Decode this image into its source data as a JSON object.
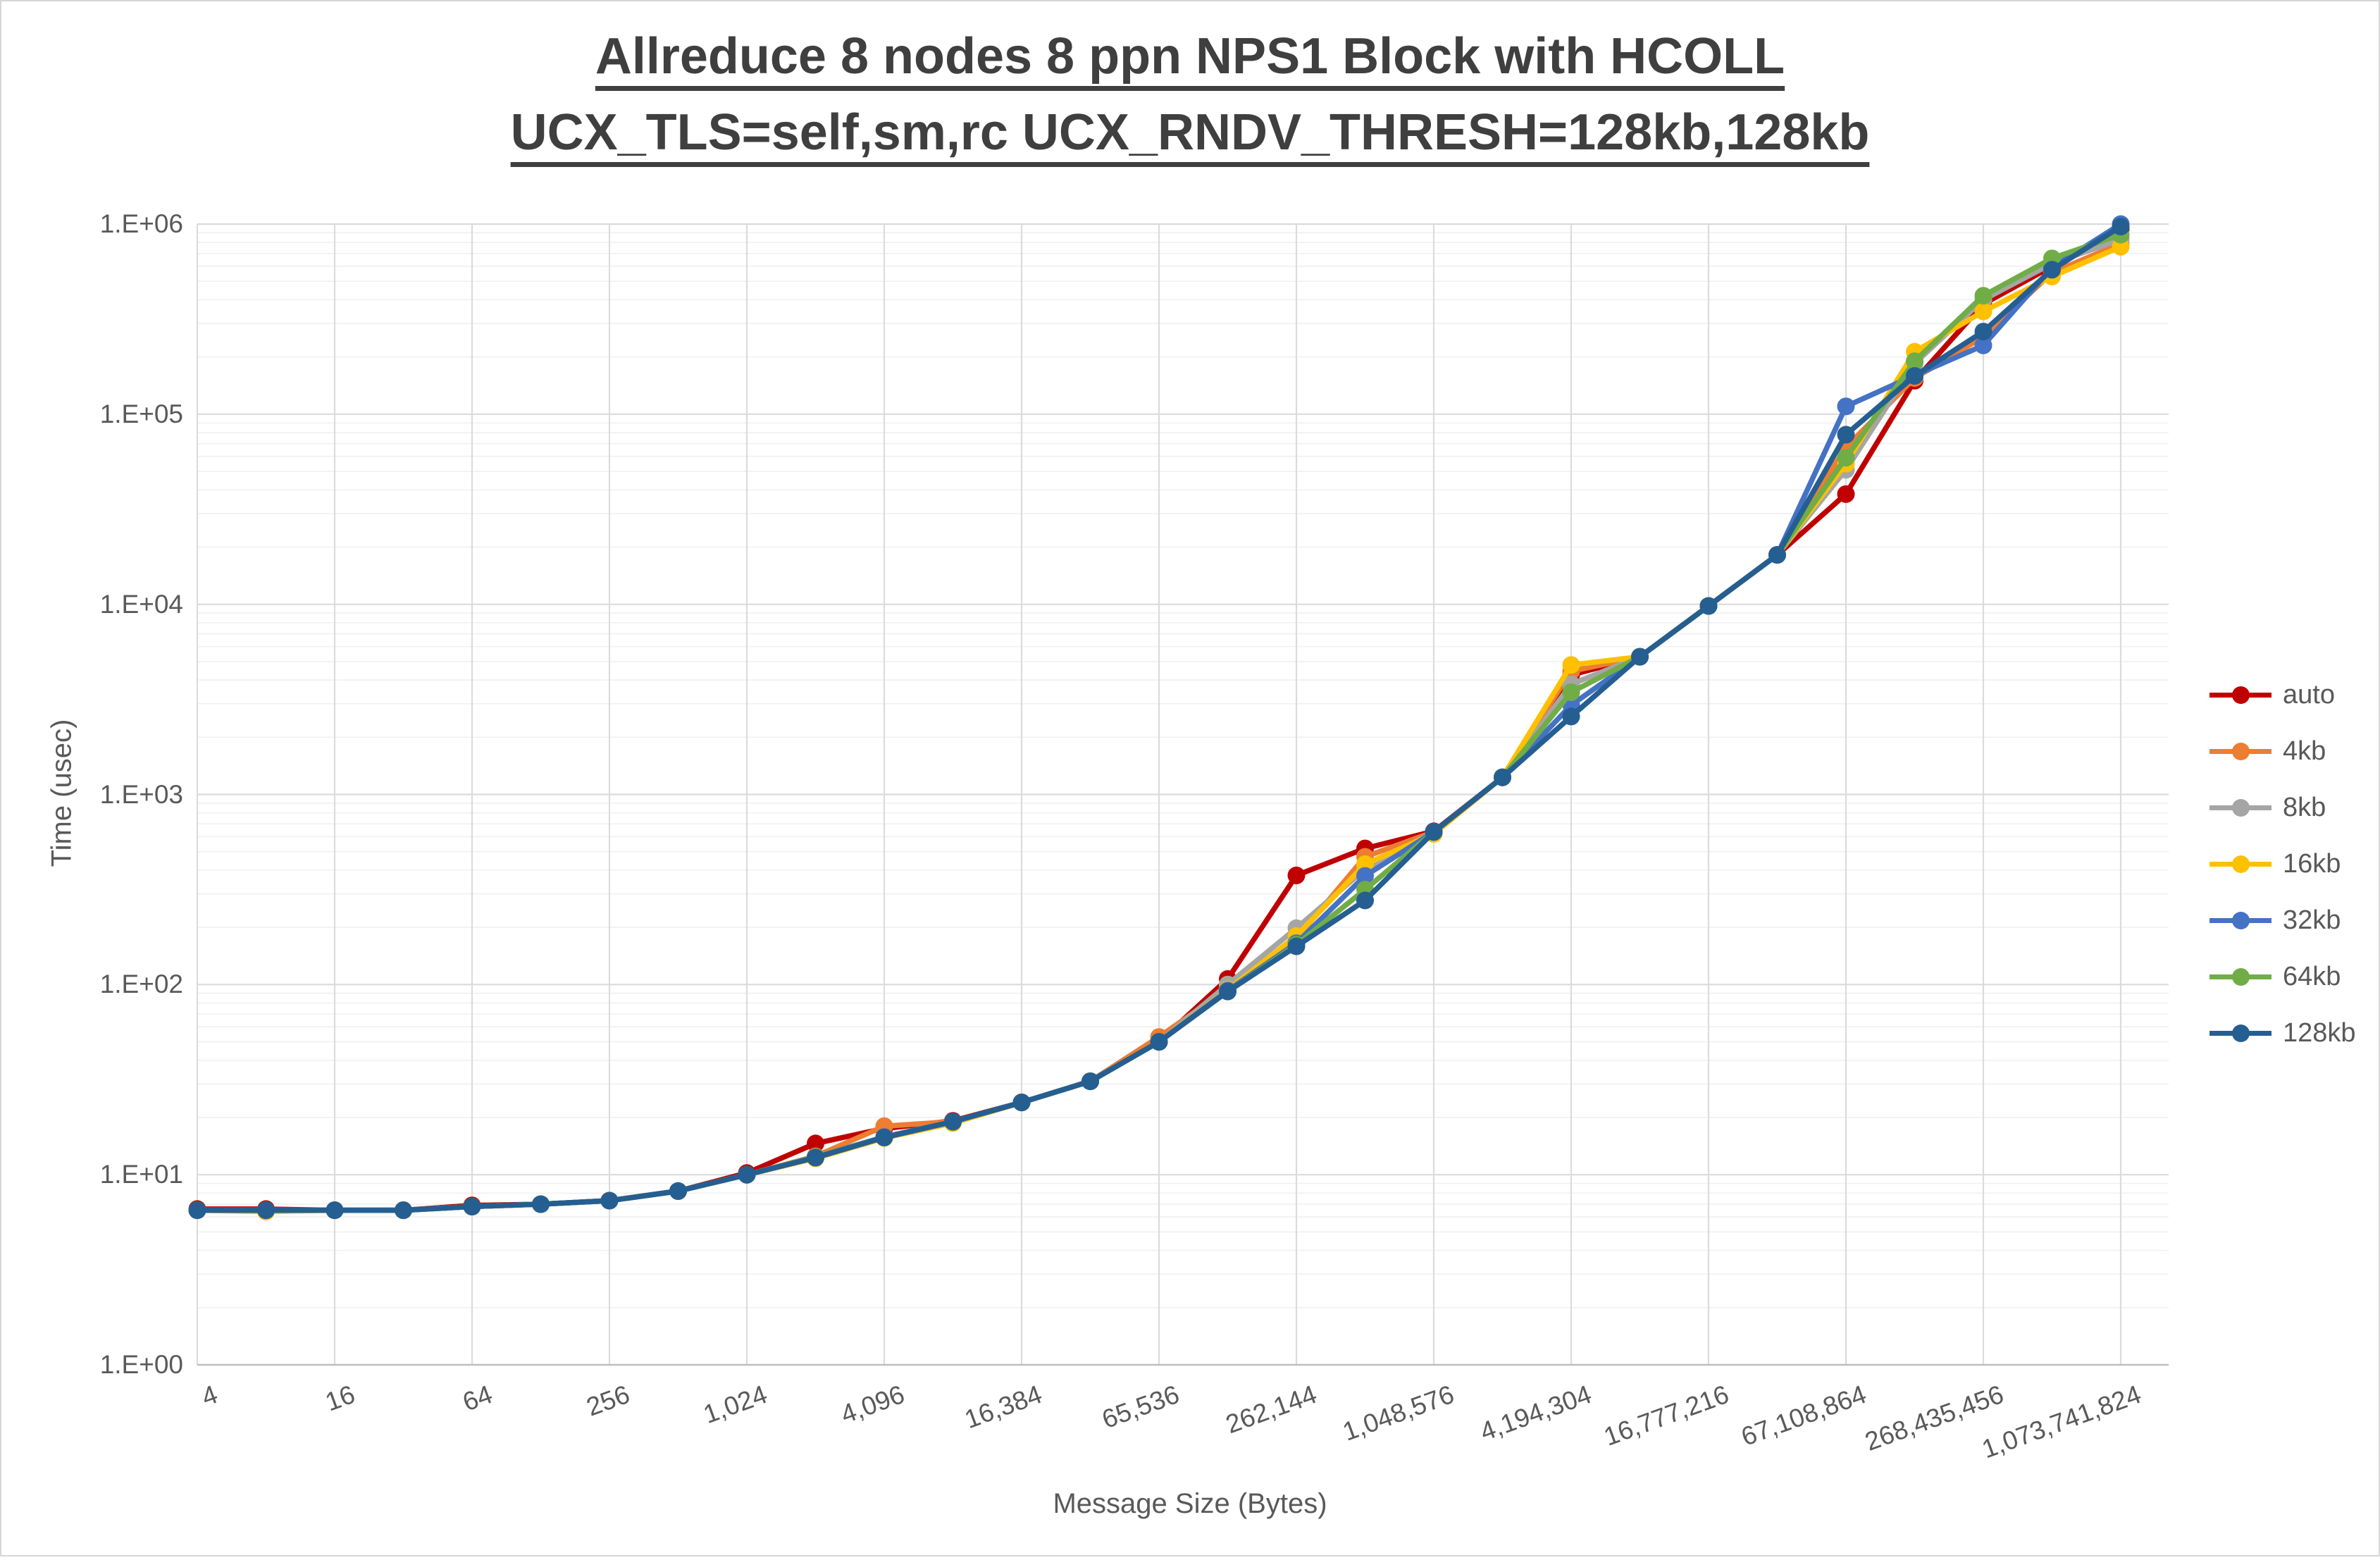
{
  "title": {
    "line1": "Allreduce 8 nodes 8 ppn NPS1 Block with HCOLL",
    "line2": "UCX_TLS=self,sm,rc UCX_RNDV_THRESH=128kb,128kb"
  },
  "axes": {
    "x_title": "Message Size (Bytes)",
    "y_title": "Time (usec)",
    "x_tick_labels": [
      "4",
      "16",
      "64",
      "256",
      "1,024",
      "4,096",
      "16,384",
      "65,536",
      "262,144",
      "1,048,576",
      "4,194,304",
      "16,777,216",
      "67,108,864",
      "268,435,456",
      "1,073,741,824"
    ],
    "y_tick_labels": [
      "1.E+00",
      "1.E+01",
      "1.E+02",
      "1.E+03",
      "1.E+04",
      "1.E+05",
      "1.E+06"
    ]
  },
  "legend": {
    "position": "right",
    "entries": [
      "auto",
      "4kb",
      "8kb",
      "16kb",
      "32kb",
      "64kb",
      "128kb"
    ]
  },
  "chart_data": {
    "type": "line",
    "xscale": "log2",
    "yscale": "log10",
    "xlabel": "Message Size (Bytes)",
    "ylabel": "Time (usec)",
    "ylim": [
      1,
      1000000
    ],
    "grid": true,
    "x": [
      4,
      8,
      16,
      32,
      64,
      128,
      256,
      512,
      1024,
      2048,
      4096,
      8192,
      16384,
      32768,
      65536,
      131072,
      262144,
      524288,
      1048576,
      2097152,
      4194304,
      8388608,
      16777216,
      33554432,
      67108864,
      134217728,
      268435456,
      536870912,
      1073741824
    ],
    "series": [
      {
        "name": "auto",
        "color": "#C00000",
        "values": [
          6.6,
          6.6,
          6.5,
          6.5,
          6.9,
          7.0,
          7.3,
          8.2,
          10.2,
          14.6,
          17.5,
          19.2,
          24,
          31,
          50,
          107,
          375,
          520,
          640,
          1230,
          4250,
          5300,
          9800,
          18200,
          38000,
          150000,
          380000,
          600000,
          940000
        ]
      },
      {
        "name": "4kb",
        "color": "#ED7D31",
        "values": [
          6.5,
          6.5,
          6.5,
          6.5,
          6.8,
          7.0,
          7.3,
          8.2,
          10,
          12.5,
          18.0,
          19.0,
          24,
          31,
          53,
          95,
          175,
          470,
          635,
          1230,
          4450,
          5300,
          9800,
          18200,
          67000,
          155000,
          255000,
          555000,
          790000
        ]
      },
      {
        "name": "8kb",
        "color": "#A5A5A5",
        "values": [
          6.5,
          6.5,
          6.5,
          6.5,
          6.8,
          7.0,
          7.3,
          8.2,
          10,
          12.4,
          15.8,
          19.0,
          24,
          31,
          50,
          100,
          198,
          405,
          635,
          1230,
          3800,
          5300,
          9800,
          18200,
          51000,
          185000,
          400000,
          620000,
          830000
        ]
      },
      {
        "name": "16kb",
        "color": "#FFC000",
        "values": [
          6.5,
          6.4,
          6.5,
          6.5,
          6.8,
          7.0,
          7.3,
          8.2,
          10,
          12.2,
          15.6,
          18.7,
          24,
          31,
          50,
          94,
          180,
          430,
          620,
          1230,
          4800,
          5300,
          9800,
          18200,
          55000,
          213000,
          347000,
          530000,
          760000
        ]
      },
      {
        "name": "32kb",
        "color": "#4472C4",
        "values": [
          6.5,
          6.5,
          6.5,
          6.5,
          6.8,
          7.0,
          7.3,
          8.2,
          10,
          12.4,
          15.8,
          19.0,
          24,
          31,
          50,
          93,
          165,
          373,
          635,
          1230,
          2950,
          5300,
          9800,
          18200,
          110000,
          160000,
          230000,
          590000,
          1000000
        ]
      },
      {
        "name": "64kb",
        "color": "#70AD47",
        "values": [
          6.5,
          6.5,
          6.5,
          6.5,
          6.8,
          7.0,
          7.3,
          8.2,
          10,
          12.4,
          15.7,
          19.0,
          24,
          31,
          50,
          92,
          162,
          316,
          635,
          1230,
          3450,
          5300,
          9800,
          18200,
          59000,
          190000,
          420000,
          660000,
          880000
        ]
      },
      {
        "name": "128kb",
        "color": "#255E91",
        "values": [
          6.5,
          6.5,
          6.5,
          6.5,
          6.8,
          7.0,
          7.3,
          8.2,
          10,
          12.3,
          15.7,
          19.0,
          24,
          31,
          50,
          92,
          159,
          277,
          635,
          1230,
          2570,
          5300,
          9800,
          18200,
          78000,
          159000,
          272000,
          575000,
          970000
        ]
      }
    ]
  },
  "style_colors": {
    "title_text": "#3F3F3F",
    "axis_text": "#595959",
    "major_grid": "#DBDBDB",
    "minor_grid": "#F0F0F0",
    "axis_line": "#BFBFBF"
  }
}
